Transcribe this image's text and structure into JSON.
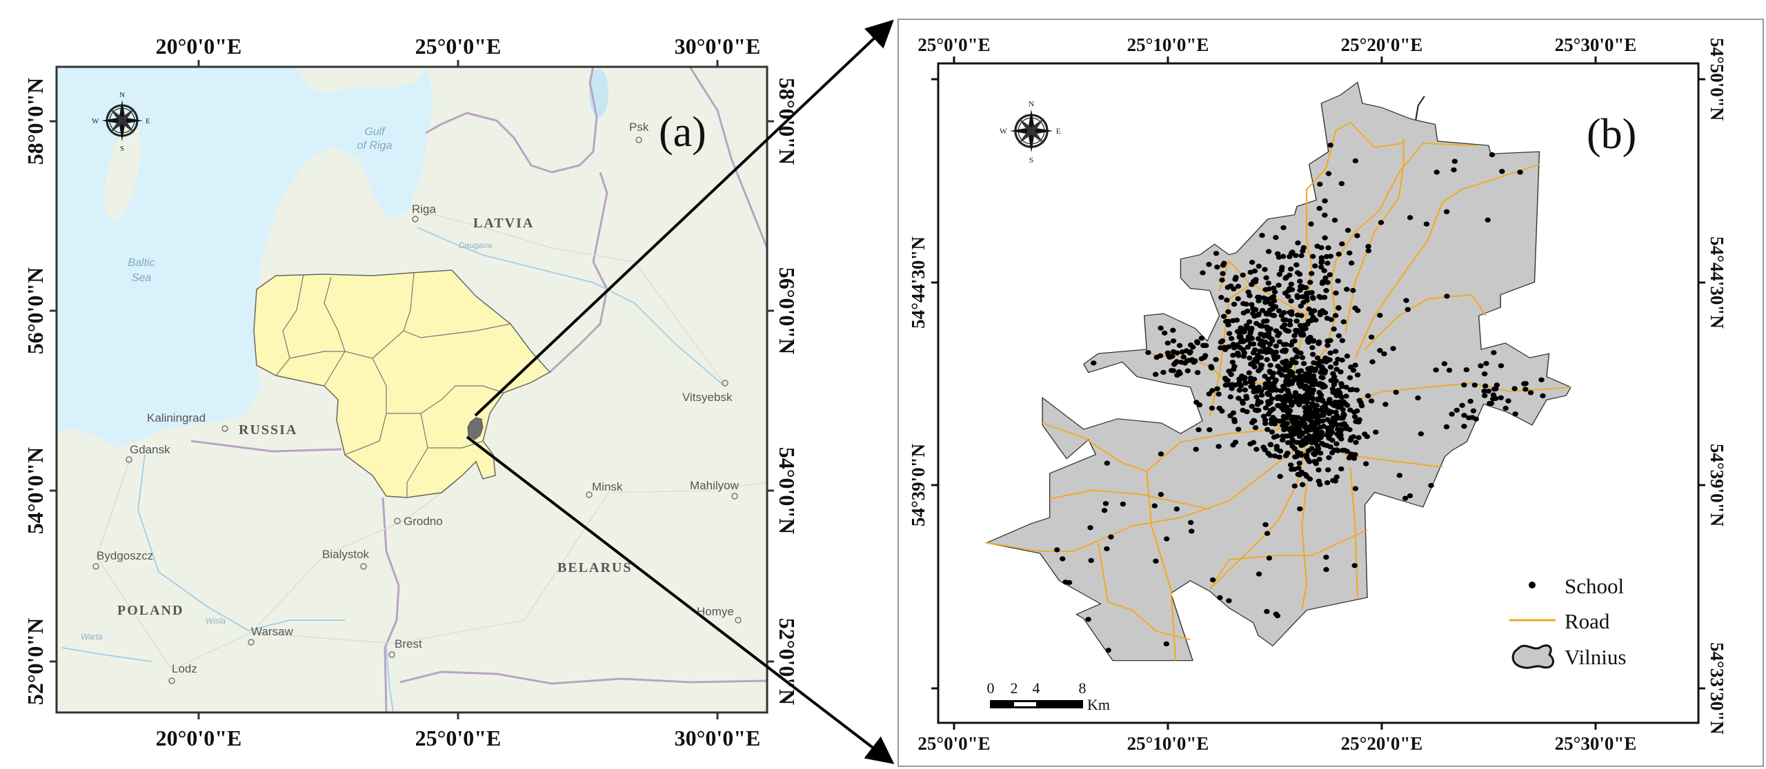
{
  "panel_a": {
    "label": "(a)",
    "lon_labels": [
      "20°0'0\"E",
      "25°0'0\"E",
      "30°0'0\"E"
    ],
    "lat_labels": [
      "58°0'0\"N",
      "56°0'0\"N",
      "54°0'0\"N",
      "52°0'0\"N"
    ],
    "water_labels": {
      "gulf_1": "Gulf",
      "gulf_2": "of Riga",
      "sea_1": "Baltic",
      "sea_2": "Sea"
    },
    "rivers": {
      "daugava": "Daugava",
      "wisla": "Wisla",
      "warta": "Warta"
    },
    "countries": {
      "latvia": "LATVIA",
      "russia": "RUSSIA",
      "poland": "POLAND",
      "belarus": "BELARUS"
    },
    "cities": {
      "riga": "Riga",
      "pskov": "Psk",
      "kaliningrad": "Kaliningrad",
      "gdansk": "Gdansk",
      "grodno": "Grodno",
      "bydgoszcz": "Bydgoszcz",
      "bialystok": "Bialystok",
      "warsaw": "Warsaw",
      "brest": "Brest",
      "lodz": "Lodz",
      "minsk": "Minsk",
      "vitsyebsk": "Vitsyebsk",
      "mahilyow": "Mahilyow",
      "homyel": "Homye"
    },
    "compass": {
      "n": "N",
      "s": "S",
      "e": "E",
      "w": "W"
    },
    "colors": {
      "sea": "#d9f1fa",
      "land": "#eef2e6",
      "lithuania": "#fdf8b5",
      "vilnius": "#6e6e6e",
      "border": "#b9a3c4"
    }
  },
  "panel_b": {
    "label": "(b)",
    "lon_labels": [
      "25°0'0\"E",
      "25°10'0\"E",
      "25°20'0\"E",
      "25°30'0\"E"
    ],
    "lat_labels": [
      "54°50'0\"N",
      "54°44'30\"N",
      "54°39'0\"N",
      "54°33'30\"N"
    ],
    "compass": {
      "n": "N",
      "s": "S",
      "e": "E",
      "w": "W"
    },
    "legend": {
      "school": "School",
      "road": "Road",
      "vilnius": "Vilnius"
    },
    "scale_bar": {
      "ticks": [
        "0",
        "2",
        "4",
        "8"
      ],
      "unit": "Km"
    },
    "colors": {
      "city_fill": "#c8c8c8",
      "road": "#f2a922",
      "school": "#000000"
    }
  }
}
